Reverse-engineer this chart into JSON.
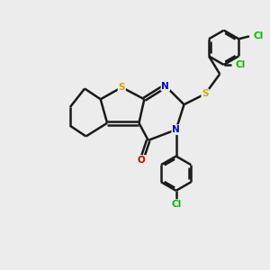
{
  "bg_color": "#ececec",
  "bond_color": "#1a1a1a",
  "S_color": "#ccaa00",
  "N_color": "#0000cc",
  "O_color": "#cc0000",
  "Cl_color": "#00bb00",
  "line_width": 1.8,
  "figsize": [
    3.0,
    3.0
  ],
  "dpi": 100,
  "xlim": [
    0,
    10
  ],
  "ylim": [
    0,
    10
  ]
}
